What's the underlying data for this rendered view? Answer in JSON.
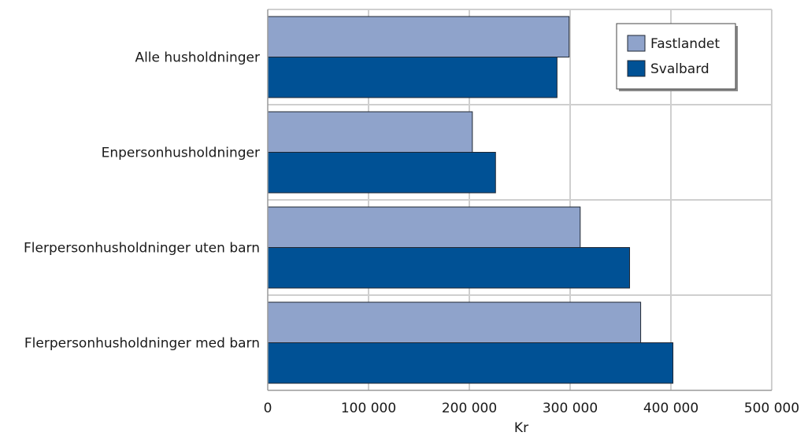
{
  "chart_data": {
    "type": "bar",
    "orientation": "horizontal",
    "categories": [
      "Alle husholdninger",
      "Enpersonhusholdninger",
      "Flerpersonhusholdninger uten barn",
      "Flerpersonhusholdninger med barn"
    ],
    "series": [
      {
        "name": "Fastlandet",
        "color": "#8fa3cb",
        "values": [
          299000,
          203000,
          310000,
          370000
        ]
      },
      {
        "name": "Svalbard",
        "color": "#005195",
        "values": [
          287000,
          226000,
          359000,
          402000
        ]
      }
    ],
    "xlabel": "Kr",
    "ylabel": "",
    "xlim": [
      0,
      500000
    ],
    "xticks": [
      0,
      100000,
      200000,
      300000,
      400000,
      500000
    ],
    "xtick_labels": [
      "0",
      "100 000",
      "200 000",
      "300 000",
      "400 000",
      "500 000"
    ],
    "grid": true,
    "legend_position": "top-right"
  }
}
